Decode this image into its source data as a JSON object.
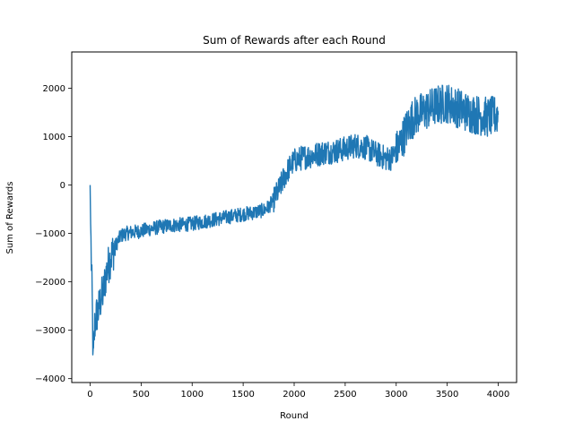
{
  "chart_data": {
    "type": "line",
    "title": "Sum of Rewards after each Round",
    "xlabel": "Round",
    "ylabel": "Sum of Rewards",
    "xlim": [
      -180,
      4180
    ],
    "ylim": [
      -4080,
      2750
    ],
    "x_ticks": [
      0,
      500,
      1000,
      1500,
      2000,
      2500,
      3000,
      3500,
      4000
    ],
    "y_ticks": [
      -4000,
      -3000,
      -2000,
      -1000,
      0,
      1000,
      2000
    ],
    "grid": false,
    "legend": "none",
    "series": [
      {
        "color": "#1f77b4",
        "x": [
          0,
          5,
          12,
          20,
          30,
          45,
          60,
          80,
          100,
          130,
          160,
          200,
          250,
          300,
          350,
          400,
          500,
          600,
          700,
          800,
          900,
          1000,
          1100,
          1200,
          1300,
          1400,
          1500,
          1600,
          1700,
          1750,
          1800,
          1850,
          1900,
          1950,
          2000,
          2100,
          2200,
          2300,
          2400,
          2500,
          2600,
          2700,
          2800,
          2900,
          2950,
          3000,
          3050,
          3100,
          3150,
          3200,
          3300,
          3400,
          3500,
          3600,
          3700,
          3800,
          3900,
          3950,
          4000
        ],
        "y": [
          0,
          -800,
          -1600,
          -2300,
          -3700,
          -2900,
          -2700,
          -2600,
          -2400,
          -2200,
          -1800,
          -1500,
          -1250,
          -1050,
          -1000,
          -980,
          -950,
          -900,
          -860,
          -830,
          -820,
          -800,
          -760,
          -720,
          -680,
          -640,
          -600,
          -570,
          -520,
          -450,
          -300,
          -100,
          150,
          350,
          500,
          580,
          620,
          680,
          700,
          750,
          820,
          780,
          650,
          550,
          560,
          700,
          900,
          1150,
          1350,
          1450,
          1550,
          1650,
          1700,
          1600,
          1500,
          1450,
          1400,
          1420,
          1450
        ]
      }
    ]
  }
}
